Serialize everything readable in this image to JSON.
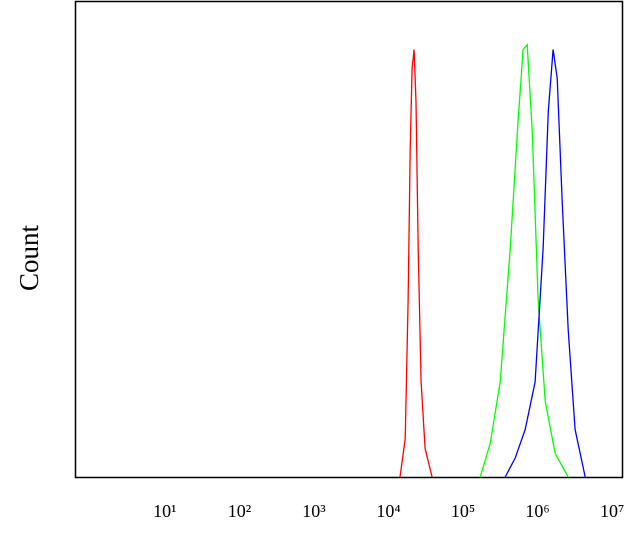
{
  "chart_data": {
    "type": "line",
    "ylabel": "Count",
    "xscale": "log",
    "xlim": [
      0.55,
      12000000
    ],
    "ylim": [
      0,
      100
    ],
    "xticks": [
      {
        "value": 10,
        "label": "10¹"
      },
      {
        "value": 100,
        "label": "10²"
      },
      {
        "value": 1000,
        "label": "10³"
      },
      {
        "value": 10000,
        "label": "10⁴"
      },
      {
        "value": 100000,
        "label": "10⁵"
      },
      {
        "value": 1000000,
        "label": "10⁶"
      },
      {
        "value": 10000000,
        "label": "10⁷"
      }
    ],
    "series": [
      {
        "color": "#ff0000",
        "x": [
          12600,
          14800,
          16200,
          17300,
          18300,
          19500,
          20700,
          22100,
          24200,
          27400,
          34000
        ],
        "values": [
          0,
          8,
          37,
          69,
          86,
          90,
          79,
          48,
          20,
          6,
          0
        ]
      },
      {
        "color": "#00ff00",
        "x": [
          150000,
          204000,
          279000,
          379000,
          485000,
          566000,
          641000,
          748000,
          902000,
          1120000,
          1520000,
          2280000
        ],
        "values": [
          0,
          7,
          20,
          48,
          75,
          90,
          91,
          73,
          37,
          16,
          5,
          0
        ]
      },
      {
        "color": "#0000ff",
        "x": [
          325000,
          443000,
          603000,
          820000,
          1050000,
          1230000,
          1430000,
          1620000,
          1890000,
          2280000,
          2820000,
          3850000
        ],
        "values": [
          0,
          4,
          10,
          20,
          48,
          77,
          90,
          84,
          58,
          31,
          10,
          0
        ]
      }
    ]
  }
}
